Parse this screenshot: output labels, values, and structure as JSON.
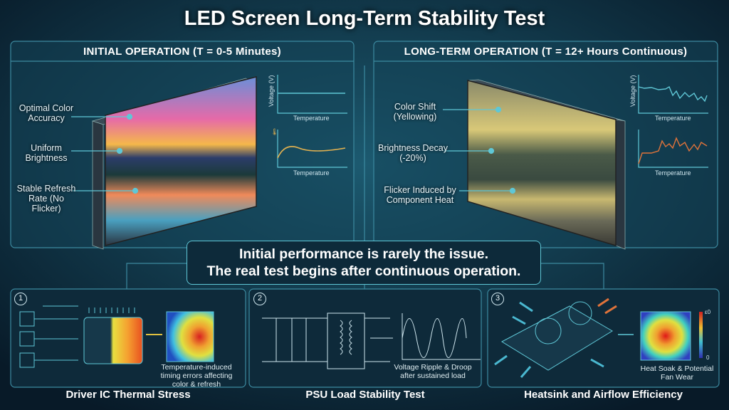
{
  "title": "LED Screen Long-Term Stability Test",
  "initial": {
    "header": "INITIAL OPERATION (T = 0-5 Minutes)",
    "callouts": [
      "Optimal Color Accuracy",
      "Uniform Brightness",
      "Stable Refresh Rate (No Flicker)"
    ],
    "chart1": {
      "ylabel": "Voltage (V)",
      "xlabel": "Temperature"
    },
    "chart2": {
      "xlabel": "Temperature"
    }
  },
  "longterm": {
    "header": "LONG-TERM OPERATION (T = 12+ Hours Continuous)",
    "callouts": [
      "Color Shift (Yellowing)",
      "Brightness Decay (-20%)",
      "Flicker Induced by Component Heat"
    ],
    "chart1": {
      "ylabel": "Voltage (V)",
      "xlabel": "Temperature"
    },
    "chart2": {
      "xlabel": "Temperature"
    }
  },
  "message": {
    "line1": "Initial performance is rarely the issue.",
    "line2": "The real test begins after continuous operation."
  },
  "tests": [
    {
      "number": "1",
      "title": "Driver IC Thermal Stress",
      "note": "Temperature-induced timing errors affecting color & refresh"
    },
    {
      "number": "2",
      "title": "PSU Load Stability Test",
      "note": "Voltage Ripple & Droop after sustained load"
    },
    {
      "number": "3",
      "title": "Heatsink and Airflow Efficiency",
      "note": "Heat Soak & Potential Fan Wear",
      "scale_max": "ε0",
      "scale_min": "0"
    }
  ],
  "colors": {
    "accent": "#5fc7d6",
    "background": "#0b2233",
    "warm": "#e0733a"
  }
}
